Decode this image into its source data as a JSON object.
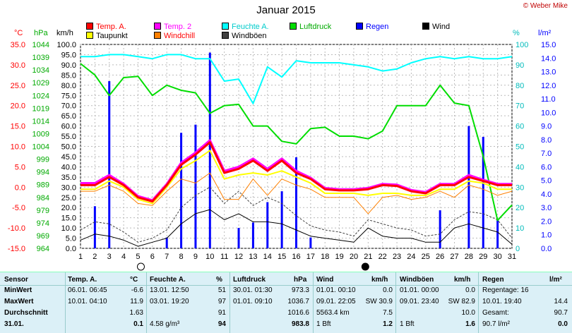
{
  "title": "Januar 2015",
  "copyright": "© Weber Mike",
  "axis_units": {
    "celsius": "°C",
    "hpa": "hPa",
    "kmh": "km/h",
    "percent": "%",
    "lm2": "l/m²"
  },
  "legend": [
    {
      "label": "Temp. A.",
      "color": "#ff0000"
    },
    {
      "label": "Temp. 2",
      "color": "#ff00ff"
    },
    {
      "label": "Feuchte A.",
      "color": "#00ffff"
    },
    {
      "label": "Luftdruck",
      "color": "#00dd00"
    },
    {
      "label": "Regen",
      "color": "#0000ff"
    },
    {
      "label": "Wind",
      "color": "#000000"
    },
    {
      "label": "Taupunkt",
      "color": "#ffff00"
    },
    {
      "label": "Windchill",
      "color": "#ff8000"
    },
    {
      "label": "Windböen",
      "color": "#404040"
    }
  ],
  "chart_data": {
    "type": "line",
    "title": "Januar 2015",
    "x": [
      1,
      2,
      3,
      4,
      5,
      6,
      7,
      8,
      9,
      10,
      11,
      12,
      13,
      14,
      15,
      16,
      17,
      18,
      19,
      20,
      21,
      22,
      23,
      24,
      25,
      26,
      27,
      28,
      29,
      30,
      31
    ],
    "axes": {
      "temperature_c": {
        "ticks": [
          "35.0",
          "30.0",
          "25.0",
          "20.0",
          "15.0",
          "10.0",
          "5.0",
          "0.0",
          "-5.0",
          "-10.0",
          "-15.0"
        ],
        "range": [
          -15,
          35
        ]
      },
      "pressure_hpa": {
        "ticks": [
          "1044",
          "1039",
          "1034",
          "1029",
          "1024",
          "1019",
          "1014",
          "1009",
          "1004",
          "999",
          "994",
          "989",
          "984",
          "979",
          "974",
          "969",
          "964"
        ],
        "range": [
          964,
          1044
        ]
      },
      "wind_kmh": {
        "ticks": [
          "100.0",
          "95.0",
          "90.0",
          "85.0",
          "80.0",
          "75.0",
          "70.0",
          "65.0",
          "60.0",
          "55.0",
          "50.0",
          "45.0",
          "40.0",
          "35.0",
          "30.0",
          "25.0",
          "20.0",
          "15.0",
          "10.0",
          "5.0",
          "0.0"
        ],
        "range": [
          0,
          100
        ]
      },
      "humidity_pct": {
        "ticks": [
          "100",
          "90",
          "80",
          "70",
          "60",
          "50",
          "40",
          "30",
          "20",
          "10",
          "0"
        ],
        "range": [
          0,
          100
        ]
      },
      "rain_lm2": {
        "ticks": [
          "15.0",
          "14.0",
          "13.0",
          "12.0",
          "11.0",
          "10.0",
          "9.0",
          "8.0",
          "7.0",
          "6.0",
          "5.0",
          "4.0",
          "3.0",
          "2.0",
          "1.0",
          "0.0"
        ],
        "range": [
          0,
          15
        ]
      },
      "x_ticks": [
        "1",
        "2",
        "3",
        "4",
        "5",
        "6",
        "7",
        "8",
        "9",
        "10",
        "11",
        "12",
        "13",
        "14",
        "15",
        "16",
        "17",
        "18",
        "19",
        "20",
        "21",
        "22",
        "23",
        "24",
        "25",
        "26",
        "27",
        "28",
        "29",
        "30",
        "31"
      ]
    },
    "series": [
      {
        "name": "Temp. A.",
        "axis": "temperature_c",
        "color": "#ff0000",
        "values": [
          0.5,
          0.5,
          2.5,
          0.5,
          -2.5,
          -3.5,
          0.5,
          5.5,
          8.0,
          11.0,
          3.5,
          4.5,
          6.5,
          4.0,
          6.5,
          3.5,
          2.0,
          -0.5,
          -0.8,
          -0.8,
          -0.5,
          0.5,
          0.3,
          -1.0,
          -1.5,
          0.5,
          0.5,
          2.5,
          1.5,
          0.5,
          0.5
        ]
      },
      {
        "name": "Temp. 2",
        "axis": "temperature_c",
        "color": "#ff00ff",
        "values": [
          1.0,
          1.0,
          3.0,
          0.8,
          -2.2,
          -3.2,
          0.8,
          6.0,
          8.5,
          11.5,
          4.0,
          5.0,
          7.0,
          4.5,
          7.0,
          4.0,
          2.3,
          -0.2,
          -0.5,
          -0.5,
          -0.2,
          0.8,
          0.6,
          -0.7,
          -1.2,
          0.8,
          0.8,
          3.0,
          1.8,
          0.8,
          0.8
        ]
      },
      {
        "name": "Taupunkt",
        "axis": "temperature_c",
        "color": "#ffff00",
        "values": [
          -0.5,
          -0.5,
          1.5,
          0.0,
          -3.0,
          -4.0,
          0.0,
          4.5,
          6.5,
          9.0,
          2.0,
          3.0,
          3.5,
          3.0,
          4.0,
          2.5,
          1.0,
          -1.5,
          -1.5,
          -1.5,
          -2.0,
          -1.5,
          -1.5,
          -2.0,
          -2.0,
          -0.5,
          -0.5,
          1.5,
          1.0,
          -0.5,
          -0.5
        ]
      },
      {
        "name": "Windchill",
        "axis": "temperature_c",
        "color": "#ff8000",
        "values": [
          -1.0,
          -1.0,
          0.5,
          -1.0,
          -4.0,
          -4.5,
          -1.0,
          2.0,
          1.0,
          3.5,
          -3.0,
          -3.0,
          2.0,
          -2.0,
          2.0,
          0.5,
          -0.5,
          -2.5,
          -2.5,
          -2.5,
          -6.5,
          -2.5,
          -2.0,
          -3.0,
          -2.5,
          -1.0,
          -2.5,
          0.5,
          -0.5,
          -2.0,
          -1.0
        ]
      },
      {
        "name": "Feuchte A.",
        "axis": "humidity_pct",
        "color": "#00ffff",
        "values": [
          94,
          94,
          95,
          95,
          94,
          93,
          95,
          95,
          93,
          93,
          82,
          83,
          71,
          89,
          84,
          92,
          91,
          91,
          91,
          90,
          89,
          87,
          88,
          91,
          93,
          94,
          93,
          94,
          93,
          93,
          94
        ]
      },
      {
        "name": "Luftdruck",
        "axis": "pressure_hpa",
        "color": "#00dd00",
        "values": [
          1036.5,
          1032,
          1024,
          1031,
          1031.5,
          1024,
          1028,
          1026,
          1025,
          1017,
          1020,
          1020.5,
          1012,
          1012,
          1006,
          1005,
          1011,
          1011.5,
          1008,
          1008,
          1007,
          1010,
          1020,
          1020,
          1020,
          1028,
          1021,
          1020,
          1000,
          975,
          981
        ]
      },
      {
        "name": "Wind",
        "axis": "wind_kmh",
        "color": "#000000",
        "values": [
          4,
          7,
          6,
          4,
          1,
          3,
          5,
          12,
          17,
          19,
          14,
          17,
          13,
          13,
          12,
          9,
          6,
          5,
          4,
          3,
          10,
          6,
          5,
          5,
          3,
          3,
          10,
          12,
          10,
          8,
          2
        ]
      },
      {
        "name": "Windböen",
        "axis": "wind_kmh",
        "color": "#404040",
        "values": [
          9,
          13,
          12,
          8,
          3,
          5,
          9,
          20,
          26,
          30,
          22,
          28,
          21,
          25,
          22,
          16,
          11,
          9,
          8,
          6,
          14,
          12,
          10,
          9,
          6,
          7,
          14,
          18,
          17,
          14,
          5
        ]
      }
    ],
    "bars": {
      "name": "Regen",
      "axis": "rain_lm2",
      "color": "#0000ff",
      "values": [
        0,
        3.1,
        12.3,
        0,
        0,
        0,
        0.8,
        8.5,
        9.1,
        14.4,
        0,
        1.5,
        1.9,
        3.4,
        4.2,
        6.7,
        0.8,
        0,
        0,
        0,
        0,
        0,
        0,
        0,
        0,
        2.8,
        0,
        9.0,
        8.2,
        2.1,
        0
      ]
    }
  },
  "table": {
    "headers": [
      {
        "label": "Sensor",
        "unit": ""
      },
      {
        "label": "Temp. A.",
        "unit": "°C"
      },
      {
        "label": "Feuchte A.",
        "unit": "%"
      },
      {
        "label": "Luftdruck",
        "unit": "hPa"
      },
      {
        "label": "Wind",
        "unit": "km/h"
      },
      {
        "label": "Windböen",
        "unit": "km/h"
      },
      {
        "label": "Regen",
        "unit": "l/m²"
      }
    ],
    "rows": [
      {
        "label": "MinWert",
        "cells": [
          [
            "06.01.   06:45",
            "-6.6"
          ],
          [
            "13.01.   12:50",
            "51"
          ],
          [
            "30.01.   01:30",
            "973.3"
          ],
          [
            "01.01.   00:10",
            "0.0"
          ],
          [
            "01.01.   00:00",
            "0.0"
          ],
          [
            "Regentage: 16",
            ""
          ]
        ]
      },
      {
        "label": "MaxWert",
        "cells": [
          [
            "10.01.   04:10",
            "11.9"
          ],
          [
            "03.01.   19:20",
            "97"
          ],
          [
            "01.01.   09:10",
            "1036.7"
          ],
          [
            "09.01.   22:05",
            "SW 30.9"
          ],
          [
            "09.01.   23:40",
            "SW 82.9"
          ],
          [
            "10.01.   19:40",
            "14.4"
          ]
        ]
      },
      {
        "label": "Durchschnitt",
        "cells": [
          [
            "",
            "1.63"
          ],
          [
            "",
            "91"
          ],
          [
            "",
            "1016.6"
          ],
          [
            "5563.4 km",
            "7.5"
          ],
          [
            "",
            "10.0"
          ],
          [
            "Gesamt:",
            "90.7"
          ]
        ]
      },
      {
        "label": "31.01.",
        "cells": [
          [
            "",
            "0.1"
          ],
          [
            "4.58 g/m³",
            "94"
          ],
          [
            "",
            "983.8"
          ],
          [
            "1 Bft",
            "1.2"
          ],
          [
            "1 Bft",
            "1.6"
          ],
          [
            "90.7 l/m²",
            "0.0"
          ]
        ]
      }
    ]
  }
}
